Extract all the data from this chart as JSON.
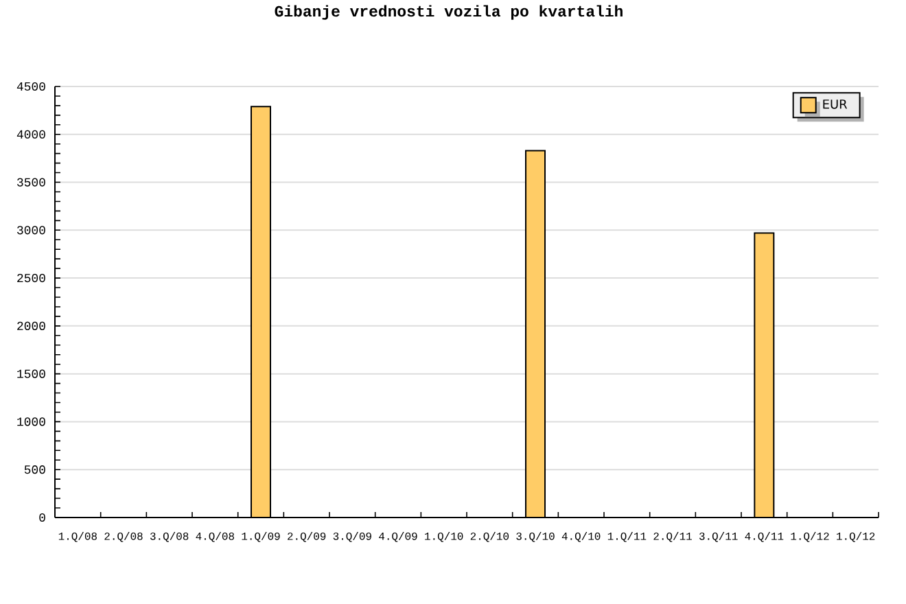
{
  "chart_data": {
    "type": "bar",
    "title": "Gibanje vrednosti vozila po kvartalih",
    "categories": [
      "1.Q/08",
      "2.Q/08",
      "3.Q/08",
      "4.Q/08",
      "1.Q/09",
      "2.Q/09",
      "3.Q/09",
      "4.Q/09",
      "1.Q/10",
      "2.Q/10",
      "3.Q/10",
      "4.Q/10",
      "1.Q/11",
      "2.Q/11",
      "3.Q/11",
      "4.Q/11",
      "1.Q/12",
      "1.Q/12"
    ],
    "series": [
      {
        "name": "EUR",
        "color": "#ffcc66",
        "values": [
          null,
          null,
          null,
          null,
          4290,
          null,
          null,
          null,
          null,
          null,
          3830,
          null,
          null,
          null,
          null,
          2970,
          null,
          null
        ]
      }
    ],
    "ylim": [
      0,
      4500
    ],
    "yticks": [
      0,
      500,
      1000,
      1500,
      2000,
      2500,
      3000,
      3500,
      4000,
      4500
    ],
    "grid": "y",
    "legend": "top right"
  }
}
